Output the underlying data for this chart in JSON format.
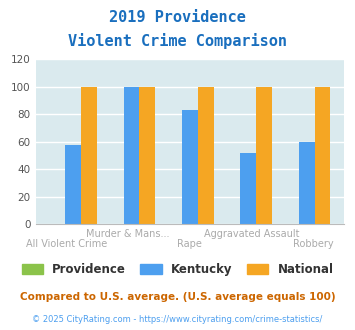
{
  "title_line1": "2019 Providence",
  "title_line2": "Violent Crime Comparison",
  "categories": [
    "All Violent Crime",
    "Murder & Mans...",
    "Rape",
    "Aggravated Assault",
    "Robbery"
  ],
  "row1_labels": [
    "",
    "Murder & Mans...",
    "",
    "Aggravated Assault",
    ""
  ],
  "row2_labels": [
    "All Violent Crime",
    "",
    "Rape",
    "",
    "Robbery"
  ],
  "providence_values": [
    0,
    0,
    0,
    0,
    0
  ],
  "kentucky_values": [
    58,
    100,
    83,
    52,
    60
  ],
  "national_values": [
    100,
    100,
    100,
    100,
    100
  ],
  "providence_color": "#8bc34a",
  "kentucky_color": "#4d9fef",
  "national_color": "#f5a623",
  "ylim": [
    0,
    120
  ],
  "yticks": [
    0,
    20,
    40,
    60,
    80,
    100,
    120
  ],
  "plot_bg_color": "#daeaee",
  "grid_color": "#ffffff",
  "title_color": "#1a6fbe",
  "xlabel_color": "#aaaaaa",
  "legend_labels": [
    "Providence",
    "Kentucky",
    "National"
  ],
  "legend_text_color": "#333333",
  "footnote1": "Compared to U.S. average. (U.S. average equals 100)",
  "footnote2": "© 2025 CityRating.com - https://www.cityrating.com/crime-statistics/",
  "footnote1_color": "#cc6600",
  "footnote2_color": "#4d9fef"
}
